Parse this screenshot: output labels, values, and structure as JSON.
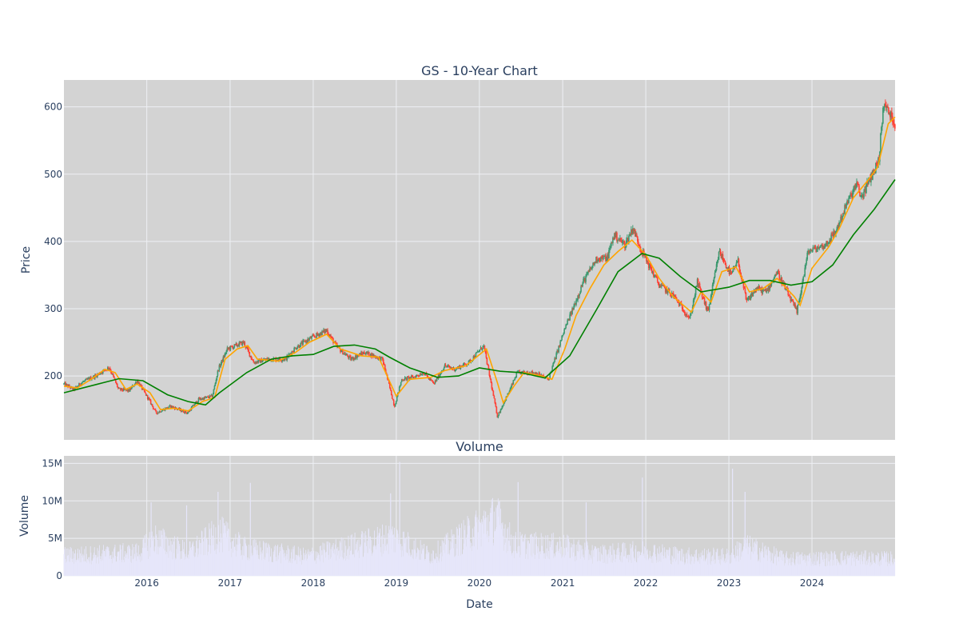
{
  "chart_title": "GS - 10-Year Chart",
  "volume_title": "Volume",
  "xlabel": "Date",
  "colors": {
    "plot_bg": "#d3d3d3",
    "grid": "#eef0f4",
    "text": "#2a3f5f",
    "candle_up": "#3d9970",
    "candle_down": "#ff4136",
    "ma_short": "#ffa500",
    "ma_long": "#008000",
    "volume_bar": "#e6e6fa"
  },
  "chart_data": [
    {
      "type": "candlestick",
      "title": "GS - 10-Year Chart",
      "ylabel": "Price",
      "xlim": [
        "2015-01-02",
        "2024-12-31"
      ],
      "ylim": [
        105,
        640
      ],
      "x_ticks": [
        "2016",
        "2017",
        "2018",
        "2019",
        "2020",
        "2021",
        "2022",
        "2023",
        "2024"
      ],
      "y_ticks": [
        200,
        300,
        400,
        500,
        600
      ],
      "grid": true,
      "series": [
        {
          "kind": "candles",
          "close_path": [
            [
              "2015-01-02",
              188
            ],
            [
              "2015-02-15",
              180
            ],
            [
              "2015-03-20",
              190
            ],
            [
              "2015-05-20",
              200
            ],
            [
              "2015-07-20",
              213
            ],
            [
              "2015-08-30",
              180
            ],
            [
              "2015-10-15",
              178
            ],
            [
              "2015-11-20",
              193
            ],
            [
              "2016-01-10",
              165
            ],
            [
              "2016-02-11",
              145
            ],
            [
              "2016-04-15",
              155
            ],
            [
              "2016-06-27",
              145
            ],
            [
              "2016-08-15",
              165
            ],
            [
              "2016-10-15",
              170
            ],
            [
              "2016-11-10",
              210
            ],
            [
              "2016-12-20",
              240
            ],
            [
              "2017-03-01",
              250
            ],
            [
              "2017-04-15",
              220
            ],
            [
              "2017-06-15",
              225
            ],
            [
              "2017-09-01",
              225
            ],
            [
              "2017-10-15",
              242
            ],
            [
              "2017-12-15",
              255
            ],
            [
              "2018-03-01",
              268
            ],
            [
              "2018-04-15",
              243
            ],
            [
              "2018-06-15",
              225
            ],
            [
              "2018-08-15",
              235
            ],
            [
              "2018-11-01",
              225
            ],
            [
              "2018-12-24",
              155
            ],
            [
              "2019-01-25",
              195
            ],
            [
              "2019-03-15",
              198
            ],
            [
              "2019-05-01",
              205
            ],
            [
              "2019-06-15",
              188
            ],
            [
              "2019-08-01",
              215
            ],
            [
              "2019-09-15",
              210
            ],
            [
              "2019-11-15",
              220
            ],
            [
              "2020-01-20",
              245
            ],
            [
              "2020-03-20",
              140
            ],
            [
              "2020-05-15",
              180
            ],
            [
              "2020-06-15",
              205
            ],
            [
              "2020-09-01",
              205
            ],
            [
              "2020-10-30",
              195
            ],
            [
              "2021-01-10",
              270
            ],
            [
              "2021-02-15",
              300
            ],
            [
              "2021-04-01",
              340
            ],
            [
              "2021-06-01",
              375
            ],
            [
              "2021-07-15",
              375
            ],
            [
              "2021-08-15",
              410
            ],
            [
              "2021-10-01",
              395
            ],
            [
              "2021-11-05",
              420
            ],
            [
              "2021-12-15",
              385
            ],
            [
              "2022-03-01",
              335
            ],
            [
              "2022-05-01",
              320
            ],
            [
              "2022-07-14",
              285
            ],
            [
              "2022-08-15",
              340
            ],
            [
              "2022-10-01",
              295
            ],
            [
              "2022-11-20",
              385
            ],
            [
              "2023-01-10",
              350
            ],
            [
              "2023-02-10",
              370
            ],
            [
              "2023-03-20",
              310
            ],
            [
              "2023-05-01",
              330
            ],
            [
              "2023-06-15",
              325
            ],
            [
              "2023-07-31",
              355
            ],
            [
              "2023-10-27",
              295
            ],
            [
              "2023-12-15",
              385
            ],
            [
              "2024-03-01",
              395
            ],
            [
              "2024-04-15",
              415
            ],
            [
              "2024-06-01",
              455
            ],
            [
              "2024-07-15",
              485
            ],
            [
              "2024-08-05",
              465
            ],
            [
              "2024-09-15",
              495
            ],
            [
              "2024-10-20",
              520
            ],
            [
              "2024-11-11",
              605
            ],
            [
              "2024-12-31",
              575
            ]
          ]
        },
        {
          "kind": "line",
          "color": "#ffa500",
          "points": [
            [
              "2015-01-02",
              185
            ],
            [
              "2015-03-01",
              182
            ],
            [
              "2015-05-01",
              195
            ],
            [
              "2015-07-01",
              210
            ],
            [
              "2015-08-15",
              205
            ],
            [
              "2015-10-01",
              180
            ],
            [
              "2015-11-20",
              188
            ],
            [
              "2016-01-15",
              175
            ],
            [
              "2016-03-01",
              150
            ],
            [
              "2016-05-01",
              152
            ],
            [
              "2016-07-01",
              148
            ],
            [
              "2016-09-01",
              162
            ],
            [
              "2016-10-25",
              168
            ],
            [
              "2016-12-10",
              225
            ],
            [
              "2017-02-01",
              240
            ],
            [
              "2017-03-20",
              245
            ],
            [
              "2017-05-01",
              225
            ],
            [
              "2017-08-01",
              222
            ],
            [
              "2017-10-15",
              235
            ],
            [
              "2017-12-15",
              250
            ],
            [
              "2018-03-01",
              262
            ],
            [
              "2018-05-01",
              240
            ],
            [
              "2018-08-01",
              230
            ],
            [
              "2018-10-15",
              228
            ],
            [
              "2019-01-01",
              170
            ],
            [
              "2019-03-01",
              195
            ],
            [
              "2019-06-01",
              198
            ],
            [
              "2019-08-01",
              208
            ],
            [
              "2019-11-01",
              215
            ],
            [
              "2020-02-01",
              240
            ],
            [
              "2020-03-20",
              190
            ],
            [
              "2020-04-15",
              160
            ],
            [
              "2020-06-01",
              185
            ],
            [
              "2020-07-15",
              205
            ],
            [
              "2020-10-01",
              200
            ],
            [
              "2020-11-15",
              195
            ],
            [
              "2021-01-10",
              240
            ],
            [
              "2021-03-01",
              290
            ],
            [
              "2021-05-01",
              330
            ],
            [
              "2021-07-01",
              365
            ],
            [
              "2021-09-01",
              385
            ],
            [
              "2021-11-01",
              402
            ],
            [
              "2022-01-01",
              380
            ],
            [
              "2022-03-01",
              345
            ],
            [
              "2022-05-01",
              318
            ],
            [
              "2022-07-20",
              295
            ],
            [
              "2022-09-01",
              325
            ],
            [
              "2022-10-15",
              310
            ],
            [
              "2022-12-01",
              355
            ],
            [
              "2023-02-01",
              362
            ],
            [
              "2023-04-01",
              325
            ],
            [
              "2023-06-01",
              330
            ],
            [
              "2023-08-01",
              345
            ],
            [
              "2023-10-15",
              318
            ],
            [
              "2023-11-10",
              305
            ],
            [
              "2024-01-01",
              360
            ],
            [
              "2024-03-15",
              392
            ],
            [
              "2024-05-01",
              420
            ],
            [
              "2024-07-01",
              465
            ],
            [
              "2024-09-01",
              490
            ],
            [
              "2024-10-15",
              510
            ],
            [
              "2024-12-01",
              575
            ],
            [
              "2024-12-31",
              585
            ]
          ]
        },
        {
          "kind": "line",
          "color": "#008000",
          "points": [
            [
              "2015-01-02",
              175
            ],
            [
              "2015-06-01",
              188
            ],
            [
              "2015-09-01",
              196
            ],
            [
              "2015-12-15",
              193
            ],
            [
              "2016-04-01",
              172
            ],
            [
              "2016-07-01",
              162
            ],
            [
              "2016-09-15",
              157
            ],
            [
              "2016-11-15",
              175
            ],
            [
              "2017-03-15",
              205
            ],
            [
              "2017-07-01",
              225
            ],
            [
              "2017-10-01",
              230
            ],
            [
              "2018-01-01",
              232
            ],
            [
              "2018-04-01",
              244
            ],
            [
              "2018-07-01",
              246
            ],
            [
              "2018-10-01",
              240
            ],
            [
              "2018-12-01",
              228
            ],
            [
              "2019-03-01",
              212
            ],
            [
              "2019-07-01",
              198
            ],
            [
              "2019-10-01",
              200
            ],
            [
              "2020-01-01",
              212
            ],
            [
              "2020-04-01",
              207
            ],
            [
              "2020-07-01",
              205
            ],
            [
              "2020-10-15",
              197
            ],
            [
              "2021-02-01",
              230
            ],
            [
              "2021-06-01",
              300
            ],
            [
              "2021-09-01",
              355
            ],
            [
              "2021-12-15",
              382
            ],
            [
              "2022-03-01",
              375
            ],
            [
              "2022-06-01",
              348
            ],
            [
              "2022-09-01",
              325
            ],
            [
              "2023-01-01",
              332
            ],
            [
              "2023-04-01",
              342
            ],
            [
              "2023-07-01",
              342
            ],
            [
              "2023-10-01",
              335
            ],
            [
              "2024-01-01",
              340
            ],
            [
              "2024-04-01",
              365
            ],
            [
              "2024-07-01",
              410
            ],
            [
              "2024-10-01",
              448
            ],
            [
              "2024-12-31",
              492
            ]
          ]
        }
      ]
    },
    {
      "type": "bar",
      "title": "Volume",
      "ylabel": "Volume",
      "xlabel": "Date",
      "xlim": [
        "2015-01-02",
        "2024-12-31"
      ],
      "ylim": [
        0,
        16000000
      ],
      "x_ticks": [
        "2016",
        "2017",
        "2018",
        "2019",
        "2020",
        "2021",
        "2022",
        "2023",
        "2024"
      ],
      "y_ticks": [
        "0",
        "5M",
        "10M",
        "15M"
      ],
      "y_tick_values": [
        0,
        5000000,
        10000000,
        15000000
      ],
      "grid": true,
      "baseline_levels": [
        [
          "2015-01-02",
          2600000
        ],
        [
          "2015-12-01",
          3000000
        ],
        [
          "2016-02-01",
          4800000
        ],
        [
          "2016-07-01",
          3000000
        ],
        [
          "2016-11-15",
          5500000
        ],
        [
          "2017-03-01",
          3500000
        ],
        [
          "2017-12-01",
          2500000
        ],
        [
          "2018-12-15",
          5000000
        ],
        [
          "2019-06-01",
          2600000
        ],
        [
          "2020-03-15",
          7500000
        ],
        [
          "2020-06-01",
          4000000
        ],
        [
          "2021-01-01",
          3800000
        ],
        [
          "2021-06-01",
          2800000
        ],
        [
          "2022-01-01",
          3200000
        ],
        [
          "2022-06-01",
          2600000
        ],
        [
          "2023-01-01",
          2500000
        ],
        [
          "2023-03-15",
          3800000
        ],
        [
          "2023-09-01",
          2200000
        ],
        [
          "2024-06-01",
          2300000
        ],
        [
          "2024-12-31",
          2200000
        ]
      ],
      "spikes": [
        [
          "2016-01-20",
          9800000
        ],
        [
          "2016-06-24",
          9400000
        ],
        [
          "2016-11-09",
          11200000
        ],
        [
          "2017-03-31",
          12400000
        ],
        [
          "2018-12-07",
          11000000
        ],
        [
          "2019-01-16",
          15200000
        ],
        [
          "2020-03-20",
          9400000
        ],
        [
          "2020-06-19",
          12500000
        ],
        [
          "2021-04-14",
          9800000
        ],
        [
          "2021-12-17",
          13100000
        ],
        [
          "2023-01-17",
          14300000
        ],
        [
          "2023-03-13",
          11200000
        ]
      ]
    }
  ]
}
